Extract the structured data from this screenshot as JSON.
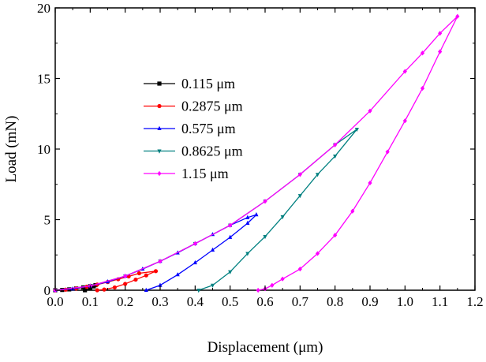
{
  "chart_data": {
    "type": "line",
    "xlabel": "Displacement (μm)",
    "ylabel": "Load (mN)",
    "xlim": [
      0.0,
      1.2
    ],
    "ylim": [
      0,
      20
    ],
    "x_ticks": [
      0.0,
      0.1,
      0.2,
      0.3,
      0.4,
      0.5,
      0.6,
      0.7,
      0.8,
      0.9,
      1.0,
      1.1,
      1.2
    ],
    "x_tick_labels": [
      "0.0",
      "0.1",
      "0.2",
      "0.3",
      "0.4",
      "0.5",
      "0.6",
      "0.7",
      "0.8",
      "0.9",
      "1.0",
      "1.1",
      "1.2"
    ],
    "y_ticks": [
      0,
      5,
      10,
      15,
      20
    ],
    "y_tick_labels": [
      "0",
      "5",
      "10",
      "15",
      "20"
    ],
    "grid": false,
    "legend_position": "upper-left",
    "series": [
      {
        "name": "0.115 μm",
        "color": "#000000",
        "marker": "square",
        "x": [
          0.0,
          0.02,
          0.04,
          0.06,
          0.08,
          0.1,
          0.115,
          0.11,
          0.1,
          0.085
        ],
        "y": [
          0.0,
          0.02,
          0.06,
          0.12,
          0.2,
          0.29,
          0.36,
          0.27,
          0.13,
          0.0
        ]
      },
      {
        "name": "0.2875 μm",
        "color": "#ff0000",
        "marker": "circle",
        "x": [
          0.0,
          0.03,
          0.06,
          0.09,
          0.12,
          0.15,
          0.18,
          0.21,
          0.24,
          0.2875,
          0.26,
          0.23,
          0.2,
          0.17,
          0.14,
          0.12
        ],
        "y": [
          0.0,
          0.04,
          0.12,
          0.25,
          0.4,
          0.58,
          0.78,
          0.98,
          1.2,
          1.35,
          1.05,
          0.75,
          0.45,
          0.2,
          0.05,
          0.0
        ]
      },
      {
        "name": "0.575 μm",
        "color": "#0000ff",
        "marker": "triangle",
        "x": [
          0.0,
          0.05,
          0.1,
          0.15,
          0.2,
          0.25,
          0.3,
          0.35,
          0.4,
          0.45,
          0.5,
          0.55,
          0.575,
          0.55,
          0.5,
          0.45,
          0.4,
          0.35,
          0.3,
          0.26
        ],
        "y": [
          0.0,
          0.1,
          0.3,
          0.6,
          1.0,
          1.5,
          2.05,
          2.65,
          3.3,
          3.95,
          4.6,
          5.15,
          5.35,
          4.75,
          3.75,
          2.85,
          1.95,
          1.1,
          0.35,
          0.0
        ]
      },
      {
        "name": "0.8625 μm",
        "color": "#008080",
        "marker": "inverted-triangle",
        "x": [
          0.0,
          0.1,
          0.2,
          0.3,
          0.4,
          0.5,
          0.6,
          0.7,
          0.8,
          0.8625,
          0.8,
          0.75,
          0.7,
          0.65,
          0.6,
          0.55,
          0.5,
          0.45,
          0.41
        ],
        "y": [
          0.0,
          0.3,
          1.0,
          2.05,
          3.3,
          4.6,
          6.3,
          8.2,
          10.3,
          11.4,
          9.5,
          8.2,
          6.7,
          5.2,
          3.8,
          2.6,
          1.3,
          0.35,
          0.0
        ]
      },
      {
        "name": "1.15 μm",
        "color": "#ff00ff",
        "marker": "diamond",
        "x": [
          0.0,
          0.1,
          0.2,
          0.3,
          0.4,
          0.5,
          0.6,
          0.7,
          0.8,
          0.9,
          1.0,
          1.05,
          1.1,
          1.15,
          1.1,
          1.05,
          1.0,
          0.95,
          0.9,
          0.85,
          0.8,
          0.75,
          0.7,
          0.65,
          0.62,
          0.6,
          0.58
        ],
        "y": [
          0.0,
          0.3,
          1.0,
          2.05,
          3.3,
          4.6,
          6.3,
          8.2,
          10.3,
          12.7,
          15.5,
          16.8,
          18.2,
          19.4,
          16.9,
          14.3,
          12.0,
          9.8,
          7.6,
          5.6,
          3.9,
          2.6,
          1.5,
          0.8,
          0.35,
          0.1,
          0.0
        ]
      }
    ]
  }
}
